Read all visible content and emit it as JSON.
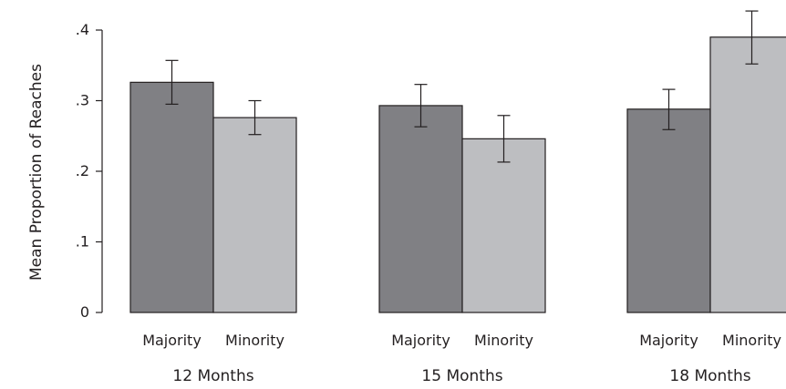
{
  "chart_data": {
    "type": "bar",
    "ylabel": "Mean Proportion of Reaches",
    "ylim": [
      0,
      0.4
    ],
    "yticks": [
      0,
      0.1,
      0.2,
      0.3,
      0.4
    ],
    "ytick_labels": [
      "0",
      ".1",
      ".2",
      ".3",
      ".4"
    ],
    "grid": false,
    "groups": [
      {
        "label": "12 Months",
        "bars": [
          {
            "category": "Majority",
            "value": 0.326,
            "error_low": 0.295,
            "error_high": 0.357,
            "color": "#808084"
          },
          {
            "category": "Minority",
            "value": 0.276,
            "error_low": 0.252,
            "error_high": 0.3,
            "color": "#bdbec1"
          }
        ]
      },
      {
        "label": "15 Months",
        "bars": [
          {
            "category": "Majority",
            "value": 0.293,
            "error_low": 0.263,
            "error_high": 0.323,
            "color": "#808084"
          },
          {
            "category": "Minority",
            "value": 0.246,
            "error_low": 0.213,
            "error_high": 0.279,
            "color": "#bdbec1"
          }
        ]
      },
      {
        "label": "18 Months",
        "bars": [
          {
            "category": "Majority",
            "value": 0.288,
            "error_low": 0.259,
            "error_high": 0.316,
            "color": "#808084"
          },
          {
            "category": "Minority",
            "value": 0.39,
            "error_low": 0.352,
            "error_high": 0.427,
            "color": "#bdbec1"
          }
        ]
      }
    ]
  }
}
